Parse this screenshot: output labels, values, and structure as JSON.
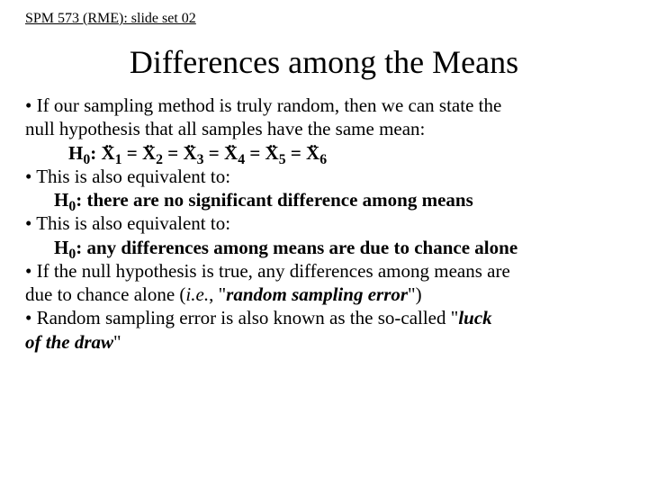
{
  "header": "SPM 573 (RME): slide set 02",
  "title": "Differences among the Means",
  "b1a": "• If our sampling method is truly random, then we can state the",
  "b1b": "null hypothesis that all samples have the same mean:",
  "h0_prefix": "H",
  "h0_sub": "0",
  "h0_colon": ": ",
  "x_letter": "X",
  "eq": " = ",
  "sub1": "1",
  "sub2": "2",
  "sub3": "3",
  "sub4": "4",
  "sub5": "5",
  "sub6": "6",
  "b2": "• This is also equivalent to:",
  "h0b": ": there are no significant difference among means",
  "b3": "• This is also equivalent to:",
  "h0c": ": any differences among means are due to chance alone",
  "b4a": "• If the null hypothesis is true, any differences among means are",
  "b4b_pre": "due to chance alone (",
  "ie": "i.e.",
  "b4b_mid": ", \"",
  "rse": "random sampling error",
  "b4b_post": "\")",
  "b5_pre": "• Random sampling error is also known as the so-called \"",
  "luck": "luck",
  "draw_pre": "of the draw",
  "b5_post": "\""
}
